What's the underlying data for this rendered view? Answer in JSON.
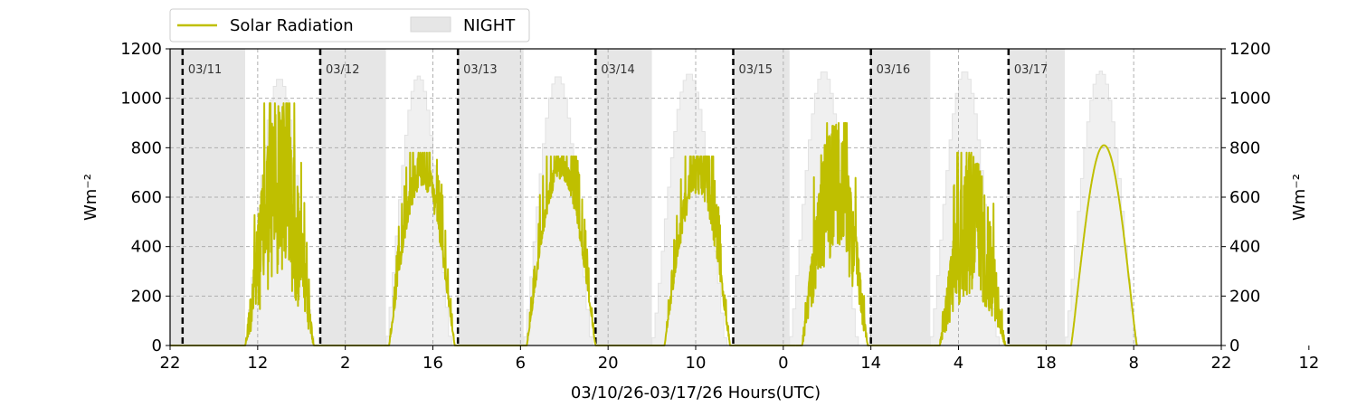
{
  "chart_data": {
    "type": "line",
    "xlabel": "03/10/26-03/17/26  Hours(UTC)",
    "ylabel_left": "Wm⁻²",
    "ylabel_right": "Wm⁻²",
    "ylim": [
      0,
      1200
    ],
    "yticks": [
      0,
      200,
      400,
      600,
      800,
      1000,
      1200
    ],
    "xlim_hours": [
      22,
      190
    ],
    "xticks": [
      {
        "hour": 22,
        "label": "22"
      },
      {
        "hour": 36,
        "label": "12"
      },
      {
        "hour": 50,
        "label": "2"
      },
      {
        "hour": 64,
        "label": "16"
      },
      {
        "hour": 78,
        "label": "6"
      },
      {
        "hour": 92,
        "label": "20"
      },
      {
        "hour": 106,
        "label": "10"
      },
      {
        "hour": 120,
        "label": "0"
      },
      {
        "hour": 134,
        "label": "14"
      },
      {
        "hour": 148,
        "label": "4"
      },
      {
        "hour": 162,
        "label": "18"
      },
      {
        "hour": 176,
        "label": "8"
      },
      {
        "hour": 190,
        "label": "22"
      },
      {
        "hour": 204,
        "label": "12"
      }
    ],
    "grid": "dashed, both axes",
    "legend": {
      "placement": "top-left, above plot",
      "items": [
        {
          "label": "Solar Radiation",
          "kind": "line",
          "color": "#bfbf00"
        },
        {
          "label": "NIGHT",
          "kind": "patch",
          "color": "#e6e6e6"
        }
      ]
    },
    "day_markers": [
      {
        "hour": 24,
        "label": "03/11"
      },
      {
        "hour": 46,
        "label": "03/12"
      },
      {
        "hour": 68,
        "label": "03/13"
      },
      {
        "hour": 90,
        "label": "03/14"
      },
      {
        "hour": 112,
        "label": "03/15"
      },
      {
        "hour": 134,
        "label": "03/16"
      },
      {
        "hour": 156,
        "label": "03/17"
      }
    ],
    "night_periods": [
      [
        22,
        34
      ],
      [
        46,
        56.5
      ],
      [
        68,
        78.5
      ],
      [
        90,
        99
      ],
      [
        112,
        121
      ],
      [
        134,
        143.5
      ],
      [
        156,
        165
      ]
    ],
    "clear_sky_envelope": {
      "color": "#f0f0f0",
      "days": [
        {
          "start": 34,
          "end": 45,
          "peak_hour": 40,
          "peak": 1080
        },
        {
          "start": 56.5,
          "end": 67,
          "peak_hour": 62,
          "peak": 1090
        },
        {
          "start": 78.5,
          "end": 89.5,
          "peak_hour": 84,
          "peak": 1090
        },
        {
          "start": 99,
          "end": 111,
          "peak_hour": 106,
          "peak": 1100
        },
        {
          "start": 121,
          "end": 132,
          "peak_hour": 128,
          "peak": 1110
        },
        {
          "start": 143.5,
          "end": 154.5,
          "peak_hour": 150,
          "peak": 1110
        },
        {
          "start": 165,
          "end": 176.5,
          "peak_hour": 170,
          "peak": 1110
        }
      ]
    },
    "series": [
      {
        "name": "Solar Radiation",
        "color": "#bfbf00",
        "days": [
          {
            "sunrise": 34,
            "sunset": 45,
            "peak_hour": 39.5,
            "peak": 980,
            "variability": 0.75
          },
          {
            "sunrise": 57,
            "sunset": 67.5,
            "peak_hour": 62,
            "peak": 780,
            "variability": 0.18
          },
          {
            "sunrise": 79,
            "sunset": 90,
            "peak_hour": 84,
            "peak": 765,
            "variability": 0.12
          },
          {
            "sunrise": 101,
            "sunset": 111.5,
            "peak_hour": 106,
            "peak": 765,
            "variability": 0.2
          },
          {
            "sunrise": 123,
            "sunset": 133.5,
            "peak_hour": 128,
            "peak": 900,
            "variability": 0.6
          },
          {
            "sunrise": 145,
            "sunset": 155.5,
            "peak_hour": 150,
            "peak": 780,
            "variability": 0.75
          },
          {
            "sunrise": 166,
            "sunset": 176.5,
            "peak_hour": 170,
            "peak": 810,
            "variability": 0.02
          }
        ]
      }
    ]
  }
}
